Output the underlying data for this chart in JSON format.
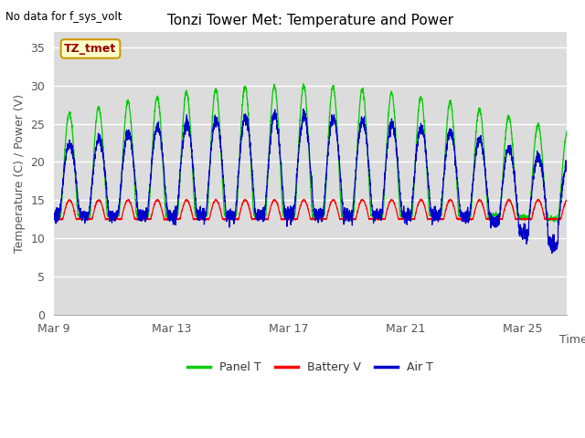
{
  "title": "Tonzi Tower Met: Temperature and Power",
  "top_left_text": "No data for f_sys_volt",
  "ylabel": "Temperature (C) / Power (V)",
  "xlabel": "Time",
  "ylim": [
    0,
    37
  ],
  "yticks": [
    0,
    5,
    10,
    15,
    20,
    25,
    30,
    35
  ],
  "xtick_positions": [
    0,
    4,
    8,
    12,
    16
  ],
  "xtick_labels": [
    "Mar 9",
    "Mar 13",
    "Mar 17",
    "Mar 21",
    "Mar 25"
  ],
  "days": 17.5,
  "plot_bg_color": "#dcdcdc",
  "fig_bg_color": "#ffffff",
  "panel_color": "#00cc00",
  "battery_color": "#ff0000",
  "air_color": "#0000cc",
  "annotation_text": "TZ_tmet",
  "legend_labels": [
    "Panel T",
    "Battery V",
    "Air T"
  ]
}
